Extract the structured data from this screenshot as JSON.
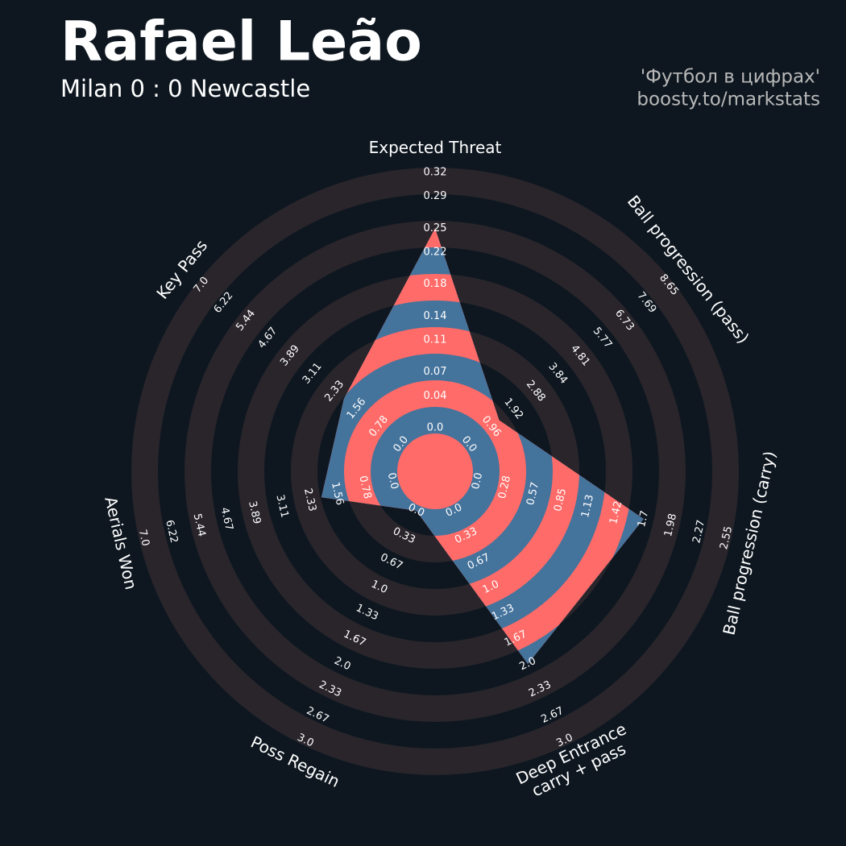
{
  "header": {
    "title": "Rafael Leão",
    "subtitle": "Milan 0 : 0 Newcastle",
    "credits": [
      "'Футбол в цифрах'",
      "boosty.to/markstats"
    ]
  },
  "chart_data": {
    "type": "radar",
    "colors": {
      "inside_even": "#ff6b68",
      "inside_odd": "#44739c",
      "outside_even": "#29252b",
      "outside_odd": "#0e1720"
    },
    "params": [
      {
        "name": [
          "Expected Threat"
        ],
        "value": 0.25,
        "rlim": [
          0,
          0.32
        ],
        "ticks": [
          {
            "value": 0,
            "label": "0.0"
          },
          0.04,
          0.07,
          0.11,
          0.14,
          0.18,
          0.22,
          0.25,
          0.29,
          0.32
        ]
      },
      {
        "name": [
          "Ball progression (pass)"
        ],
        "value": 1.3,
        "rlim": [
          0,
          8.65
        ],
        "ticks": [
          {
            "value": 0,
            "label": "0.0"
          },
          0.96,
          1.92,
          2.88,
          3.84,
          4.81,
          5.77,
          6.73,
          7.69,
          8.65
        ]
      },
      {
        "name": [
          "Ball progression (carry)"
        ],
        "value": 1.7,
        "rlim": [
          0,
          2.55
        ],
        "ticks": [
          {
            "value": 0,
            "label": "0.0"
          },
          0.28,
          0.57,
          0.85,
          1.13,
          1.42,
          1.7,
          1.98,
          2.27,
          2.55
        ]
      },
      {
        "name": [
          "Deep Entrance",
          "carry + pass"
        ],
        "value": 2.0,
        "rlim": [
          0,
          3.0
        ],
        "ticks": [
          {
            "value": 0,
            "label": "0.0"
          },
          0.33,
          0.67,
          {
            "value": 1,
            "label": "1.0"
          },
          1.33,
          1.67,
          {
            "value": 2,
            "label": "2.0"
          },
          2.33,
          2.67,
          {
            "value": 3,
            "label": "3.0"
          }
        ]
      },
      {
        "name": [
          "Poss Regain"
        ],
        "value": 0,
        "rlim": [
          0,
          3.0
        ],
        "ticks": [
          {
            "value": 0,
            "label": "0.0"
          },
          0.33,
          0.67,
          {
            "value": 1,
            "label": "1.0"
          },
          1.33,
          1.67,
          {
            "value": 2,
            "label": "2.0"
          },
          2.33,
          2.67,
          {
            "value": 3,
            "label": "3.0"
          }
        ]
      },
      {
        "name": [
          "Aerials Won"
        ],
        "value": 2.0,
        "rlim": [
          0,
          7.0
        ],
        "ticks": [
          {
            "value": 0,
            "label": "0.0"
          },
          0.78,
          1.56,
          2.33,
          3.11,
          3.89,
          4.67,
          5.44,
          6.22,
          {
            "value": 7,
            "label": "7.0"
          }
        ]
      },
      {
        "name": [
          "Key Pass"
        ],
        "value": 2.0,
        "rlim": [
          0,
          7.0
        ],
        "ticks": [
          {
            "value": 0,
            "label": "0.0"
          },
          0.78,
          1.56,
          2.33,
          3.11,
          3.89,
          4.67,
          5.44,
          6.22,
          {
            "value": 7,
            "label": "7.0"
          }
        ]
      }
    ]
  }
}
